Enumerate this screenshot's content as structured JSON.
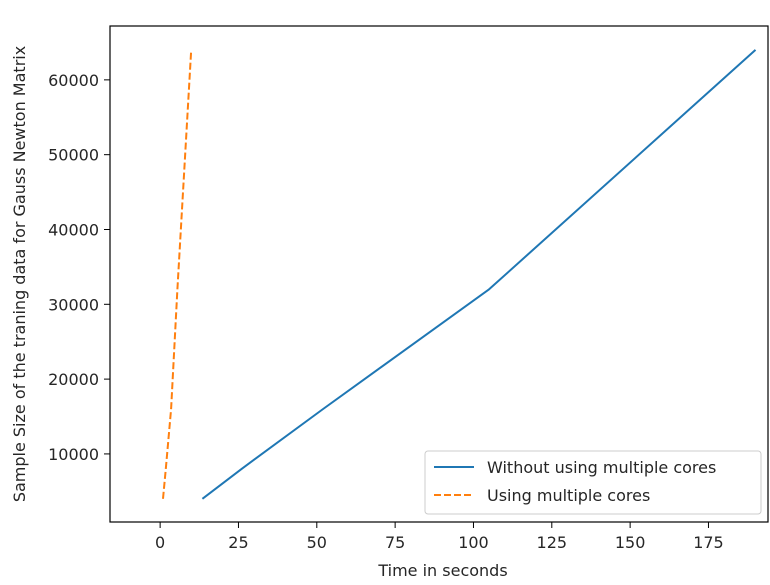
{
  "chart_data": {
    "type": "line",
    "xlabel": "Time in seconds",
    "ylabel": "Sample Size of the traning data for Gauss Newton Matrix",
    "xlim": [
      -16,
      194
    ],
    "ylim": [
      900,
      67200
    ],
    "xticks": [
      0,
      25,
      50,
      75,
      100,
      125,
      150,
      175
    ],
    "yticks": [
      10000,
      20000,
      30000,
      40000,
      50000,
      60000
    ],
    "grid": false,
    "legend_position": "lower-right",
    "series": [
      {
        "name": "Without using multiple cores",
        "color": "#1f77b4",
        "linestyle": "solid",
        "x": [
          13.5,
          26,
          52,
          105,
          190
        ],
        "y": [
          4000,
          8000,
          16000,
          32000,
          64000
        ]
      },
      {
        "name": "Using multiple cores",
        "color": "#ff7f0e",
        "linestyle": "dashed",
        "x": [
          0.9,
          1.8,
          3.5,
          5.5,
          9.9
        ],
        "y": [
          4000,
          8000,
          16000,
          32000,
          64000
        ]
      }
    ]
  }
}
